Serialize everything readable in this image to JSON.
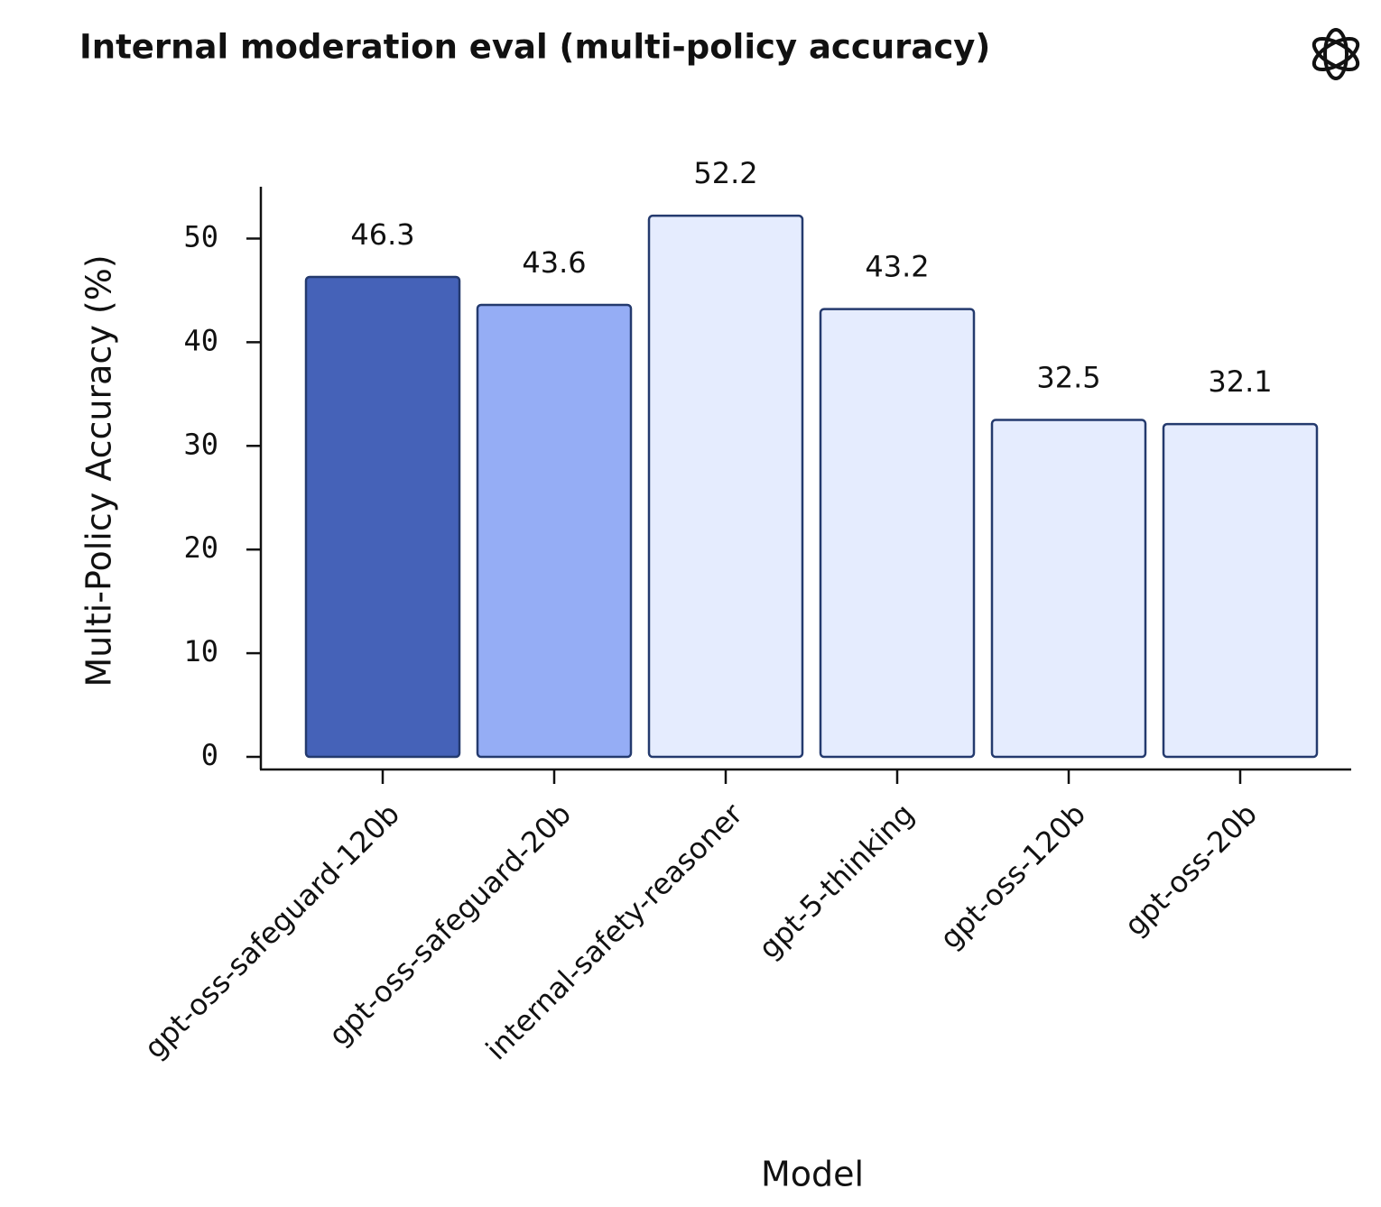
{
  "chart_data": {
    "type": "bar",
    "title": "Internal moderation eval (multi-policy accuracy)",
    "xlabel": "Model",
    "ylabel": "Multi-Policy Accuracy (%)",
    "categories": [
      "gpt-oss-safeguard-120b",
      "gpt-oss-safeguard-20b",
      "internal-safety-reasoner",
      "gpt-5-thinking",
      "gpt-oss-120b",
      "gpt-oss-20b"
    ],
    "values": [
      46.3,
      43.6,
      52.2,
      43.2,
      32.5,
      32.1
    ],
    "colors": [
      "#4562b8",
      "#95adf5",
      "#e5ecfe",
      "#e5ecfe",
      "#e5ecfe",
      "#e5ecfe"
    ],
    "edge_color": "#243a6e",
    "ylim": [
      0,
      55
    ],
    "yticks": [
      0,
      10,
      20,
      30,
      40,
      50
    ],
    "grid": false
  }
}
